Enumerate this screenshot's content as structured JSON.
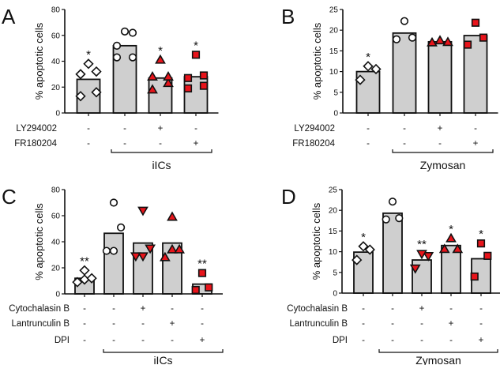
{
  "chart_data": [
    {
      "panel": "A",
      "type": "bar",
      "ylabel": "% apoptotic cells",
      "ylim": [
        0,
        80
      ],
      "yticks": [
        0,
        20,
        40,
        60,
        80
      ],
      "treatments": [
        "LY294002",
        "FR180204"
      ],
      "treatment_matrix": [
        [
          "-",
          "-",
          "+",
          "-"
        ],
        [
          "-",
          "-",
          "-",
          "+"
        ]
      ],
      "group_label": "iICs",
      "group_span": [
        1,
        3
      ],
      "bars": [
        {
          "mean": 26,
          "points": [
            13,
            16,
            30,
            32,
            38
          ],
          "marker": "diamond",
          "fill": "#ffffff",
          "sig": "*"
        },
        {
          "mean": 52,
          "points": [
            43,
            43,
            52,
            62,
            63
          ],
          "marker": "circle",
          "fill": "#ffffff",
          "sig": ""
        },
        {
          "mean": 27,
          "points": [
            18,
            23,
            28,
            28,
            41
          ],
          "marker": "triangle-up",
          "fill": "#e8141b",
          "sig": "*"
        },
        {
          "mean": 28,
          "points": [
            19,
            21,
            27,
            29,
            45
          ],
          "marker": "square",
          "fill": "#e8141b",
          "sig": "*"
        }
      ]
    },
    {
      "panel": "B",
      "type": "bar",
      "ylabel": "% apoptotic cells",
      "ylim": [
        0,
        25
      ],
      "yticks": [
        0,
        5,
        10,
        15,
        20,
        25
      ],
      "treatments": [
        "LY294002",
        "FR180204"
      ],
      "treatment_matrix": [
        [
          "-",
          "-",
          "+",
          "-"
        ],
        [
          "-",
          "-",
          "-",
          "+"
        ]
      ],
      "group_label": "Zymosan",
      "group_span": [
        1,
        3
      ],
      "bars": [
        {
          "mean": 10,
          "points": [
            8,
            10.6,
            11.3
          ],
          "marker": "diamond",
          "fill": "#ffffff",
          "sig": "*"
        },
        {
          "mean": 19.3,
          "points": [
            17.8,
            18.2,
            22.2
          ],
          "marker": "circle",
          "fill": "#ffffff",
          "sig": ""
        },
        {
          "mean": 17.2,
          "points": [
            17,
            17.1,
            17.5
          ],
          "marker": "triangle-up",
          "fill": "#e8141b",
          "sig": ""
        },
        {
          "mean": 18.7,
          "points": [
            16.5,
            18.2,
            21.8
          ],
          "marker": "square",
          "fill": "#e8141b",
          "sig": ""
        }
      ]
    },
    {
      "panel": "C",
      "type": "bar",
      "ylabel": "% apoptotic cells",
      "ylim": [
        0,
        80
      ],
      "yticks": [
        0,
        20,
        40,
        60,
        80
      ],
      "treatments": [
        "Cytochalasin B",
        "Lantrunculin B",
        "DPI"
      ],
      "treatment_matrix": [
        [
          "-",
          "-",
          "+",
          "-",
          "-"
        ],
        [
          "-",
          "-",
          "-",
          "+",
          "-"
        ],
        [
          "-",
          "-",
          "-",
          "-",
          "+"
        ]
      ],
      "group_label": "iICs",
      "group_span": [
        1,
        4
      ],
      "bars": [
        {
          "mean": 12,
          "points": [
            9,
            11,
            12,
            18
          ],
          "marker": "diamond",
          "fill": "#ffffff",
          "sig": "**"
        },
        {
          "mean": 46.5,
          "points": [
            33,
            33,
            51,
            70
          ],
          "marker": "circle",
          "fill": "#ffffff",
          "sig": ""
        },
        {
          "mean": 39,
          "points": [
            29,
            29,
            35,
            64
          ],
          "marker": "triangle-down",
          "fill": "#e8141b",
          "sig": ""
        },
        {
          "mean": 39,
          "points": [
            28,
            34,
            34,
            59
          ],
          "marker": "triangle-up",
          "fill": "#e8141b",
          "sig": ""
        },
        {
          "mean": 7.5,
          "points": [
            3,
            5,
            16
          ],
          "marker": "square",
          "fill": "#e8141b",
          "sig": "**"
        }
      ]
    },
    {
      "panel": "D",
      "type": "bar",
      "ylabel": "% apoptotic cells",
      "ylim": [
        0,
        25
      ],
      "yticks": [
        0,
        5,
        10,
        15,
        20,
        25
      ],
      "treatments": [
        "Cytochalasin B",
        "Lantrunculin B",
        "DPI"
      ],
      "treatment_matrix": [
        [
          "-",
          "-",
          "+",
          "-",
          "-"
        ],
        [
          "-",
          "-",
          "-",
          "+",
          "-"
        ],
        [
          "-",
          "-",
          "-",
          "-",
          "+"
        ]
      ],
      "group_label": "Zymosan",
      "group_span": [
        1,
        4
      ],
      "bars": [
        {
          "mean": 9.9,
          "points": [
            8,
            10.5,
            11.3
          ],
          "marker": "diamond",
          "fill": "#ffffff",
          "sig": "*"
        },
        {
          "mean": 19.3,
          "points": [
            17.8,
            18.1,
            22.1
          ],
          "marker": "circle",
          "fill": "#ffffff",
          "sig": ""
        },
        {
          "mean": 8,
          "points": [
            6,
            9,
            9.5
          ],
          "marker": "triangle-down",
          "fill": "#e8141b",
          "sig": "**"
        },
        {
          "mean": 11.5,
          "points": [
            10.6,
            10.6,
            13.2
          ],
          "marker": "triangle-up",
          "fill": "#e8141b",
          "sig": "*"
        },
        {
          "mean": 8.3,
          "points": [
            4,
            9,
            12
          ],
          "marker": "square",
          "fill": "#e8141b",
          "sig": "*"
        }
      ]
    }
  ],
  "colors": {
    "bar_fill": "#cfcfcf",
    "axis": "#111111"
  }
}
